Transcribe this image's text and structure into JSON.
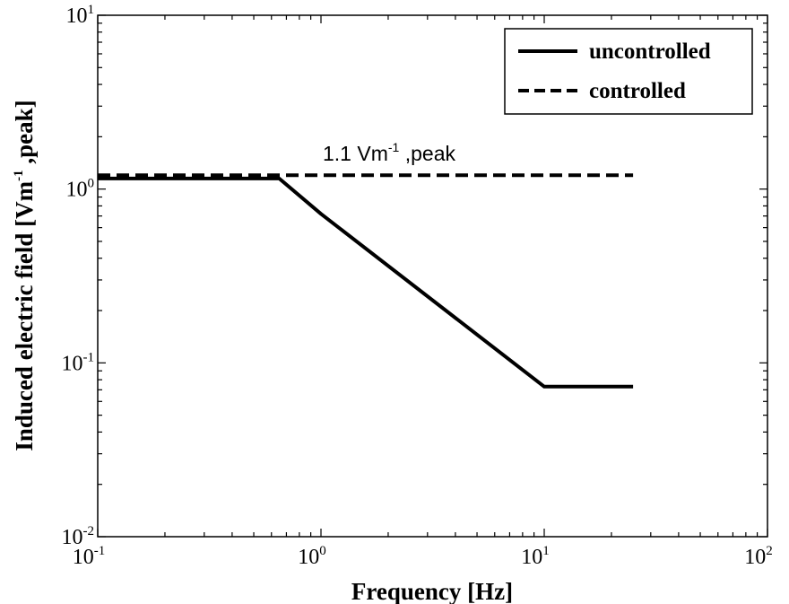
{
  "chart_data": {
    "type": "line",
    "xlabel": "Frequency [Hz]",
    "ylabel": "Induced electric field [Vm⁻¹,peak]",
    "ylabel_parts": {
      "pre": "Induced electric field [Vm",
      "sup": "-1",
      "post": " ,peak]"
    },
    "xscale": "log",
    "yscale": "log",
    "xlim": [
      0.1,
      100
    ],
    "ylim": [
      0.01,
      10
    ],
    "x_ticks": [
      {
        "base": "10",
        "exp": "-1"
      },
      {
        "base": "10",
        "exp": "0"
      },
      {
        "base": "10",
        "exp": "1"
      },
      {
        "base": "10",
        "exp": "2"
      }
    ],
    "y_ticks": [
      {
        "base": "10",
        "exp": "-2"
      },
      {
        "base": "10",
        "exp": "-1"
      },
      {
        "base": "10",
        "exp": "0"
      },
      {
        "base": "10",
        "exp": "1"
      }
    ],
    "grid": false,
    "legend_position": "top-right",
    "series": [
      {
        "name": "uncontrolled",
        "style": "solid",
        "color": "#000000",
        "x": [
          0.1,
          0.65,
          1.0,
          10.0,
          25.0
        ],
        "y": [
          1.15,
          1.15,
          0.72,
          0.073,
          0.073
        ]
      },
      {
        "name": "controlled",
        "style": "dashed",
        "color": "#000000",
        "x": [
          0.1,
          25.0
        ],
        "y": [
          1.2,
          1.2
        ]
      }
    ],
    "annotation": {
      "pre": "1.1 Vm",
      "sup": "-1",
      "post": " ,peak",
      "x": 2.9,
      "y": 1.5
    }
  }
}
